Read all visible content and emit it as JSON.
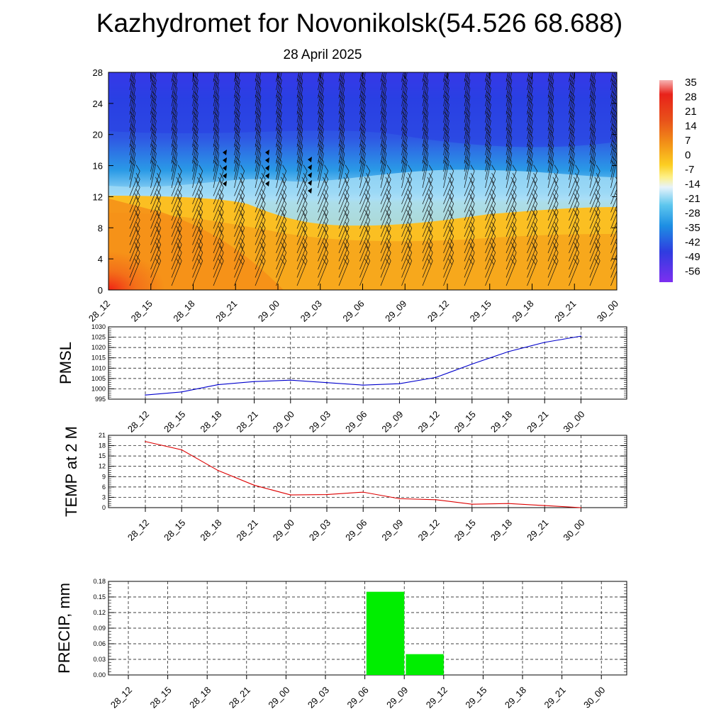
{
  "title": "Kazhydromet for Novonikolsk(54.526 68.688)",
  "subtitle": "28 April 2025",
  "colorbar": {
    "labels": [
      "35",
      "28",
      "21",
      "14",
      "7",
      "0",
      "-7",
      "-14",
      "-21",
      "-28",
      "-35",
      "-42",
      "-49",
      "-56"
    ]
  },
  "chart_data": [
    {
      "type": "heatmap",
      "id": "cross-section",
      "x_labels": [
        "28_12",
        "28_15",
        "28_18",
        "28_21",
        "29_00",
        "29_03",
        "29_06",
        "29_09",
        "29_12",
        "29_15",
        "29_18",
        "29_21",
        "30_00"
      ],
      "yticks": [
        0,
        4,
        8,
        12,
        16,
        20,
        24,
        28
      ],
      "ylim": [
        0,
        28
      ]
    },
    {
      "type": "line",
      "id": "pmsl",
      "ylabel": "PMSL",
      "categories": [
        "28_12",
        "28_15",
        "28_18",
        "28_21",
        "29_00",
        "29_03",
        "29_06",
        "29_09",
        "29_12",
        "29_15",
        "29_18",
        "29_21",
        "30_00"
      ],
      "values": [
        997,
        998.5,
        1002,
        1003.5,
        1004.2,
        1003,
        1001.8,
        1002.5,
        1005.5,
        1012,
        1018,
        1022.5,
        1025.5
      ],
      "ylim": [
        995,
        1030
      ],
      "yticks": [
        995,
        1000,
        1005,
        1010,
        1015,
        1020,
        1025,
        1030
      ],
      "color": "#0000cc"
    },
    {
      "type": "line",
      "id": "temp2m",
      "ylabel": "TEMP at 2 M",
      "categories": [
        "28_12",
        "28_15",
        "28_18",
        "28_21",
        "29_00",
        "29_03",
        "29_06",
        "29_09",
        "29_12",
        "29_15",
        "29_18",
        "29_21",
        "30_00"
      ],
      "values": [
        19.2,
        16.8,
        10.8,
        6.5,
        3.7,
        3.8,
        4.5,
        2.6,
        2.3,
        1.0,
        1.2,
        0.6,
        0.0
      ],
      "ylim": [
        0,
        21
      ],
      "yticks": [
        0,
        3,
        6,
        9,
        12,
        15,
        18,
        21
      ],
      "color": "#dd0000"
    },
    {
      "type": "bar",
      "id": "precip",
      "ylabel": "PRECIP, mm",
      "categories": [
        "28_12",
        "28_15",
        "28_18",
        "28_21",
        "29_00",
        "29_03",
        "29_06",
        "29_09",
        "29_12",
        "29_15",
        "29_18",
        "29_21",
        "30_00"
      ],
      "values": [
        0,
        0,
        0,
        0,
        0,
        0,
        0,
        0.16,
        0.04,
        0,
        0,
        0,
        0
      ],
      "ylim": [
        0,
        0.18
      ],
      "yticks": [
        "0.00",
        "0.03",
        "0.06",
        "0.09",
        "0.12",
        "0.15",
        "0.18"
      ],
      "color": "#00ee00"
    }
  ]
}
